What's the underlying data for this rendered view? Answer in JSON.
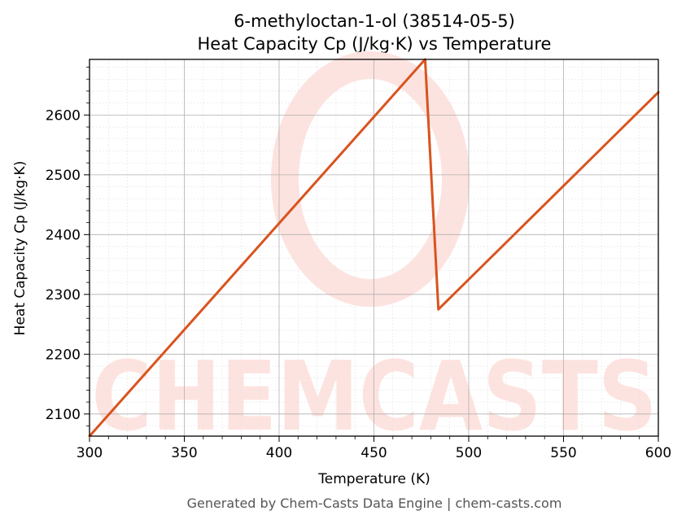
{
  "chart_data": {
    "type": "line",
    "title_line1": "6-methyloctan-1-ol (38514-05-5)",
    "title_line2": "Heat Capacity Cp (J/kg·K) vs Temperature",
    "xlabel": "Temperature (K)",
    "ylabel": "Heat Capacity Cp (J/kg·K)",
    "xlim": [
      300,
      600
    ],
    "ylim": [
      2063,
      2693
    ],
    "xticks": [
      300,
      350,
      400,
      450,
      500,
      550,
      600
    ],
    "yticks": [
      2100,
      2200,
      2300,
      2400,
      2500,
      2600
    ],
    "grid": true,
    "series": [
      {
        "color": "#d9531e",
        "x": [
          300,
          477,
          484,
          600
        ],
        "y": [
          2063,
          2693,
          2275,
          2638
        ]
      }
    ]
  },
  "watermark": {
    "text": "CHEMCASTS",
    "color": "#fde3df"
  },
  "footer": "Generated by Chem-Casts Data Engine | chem-casts.com"
}
